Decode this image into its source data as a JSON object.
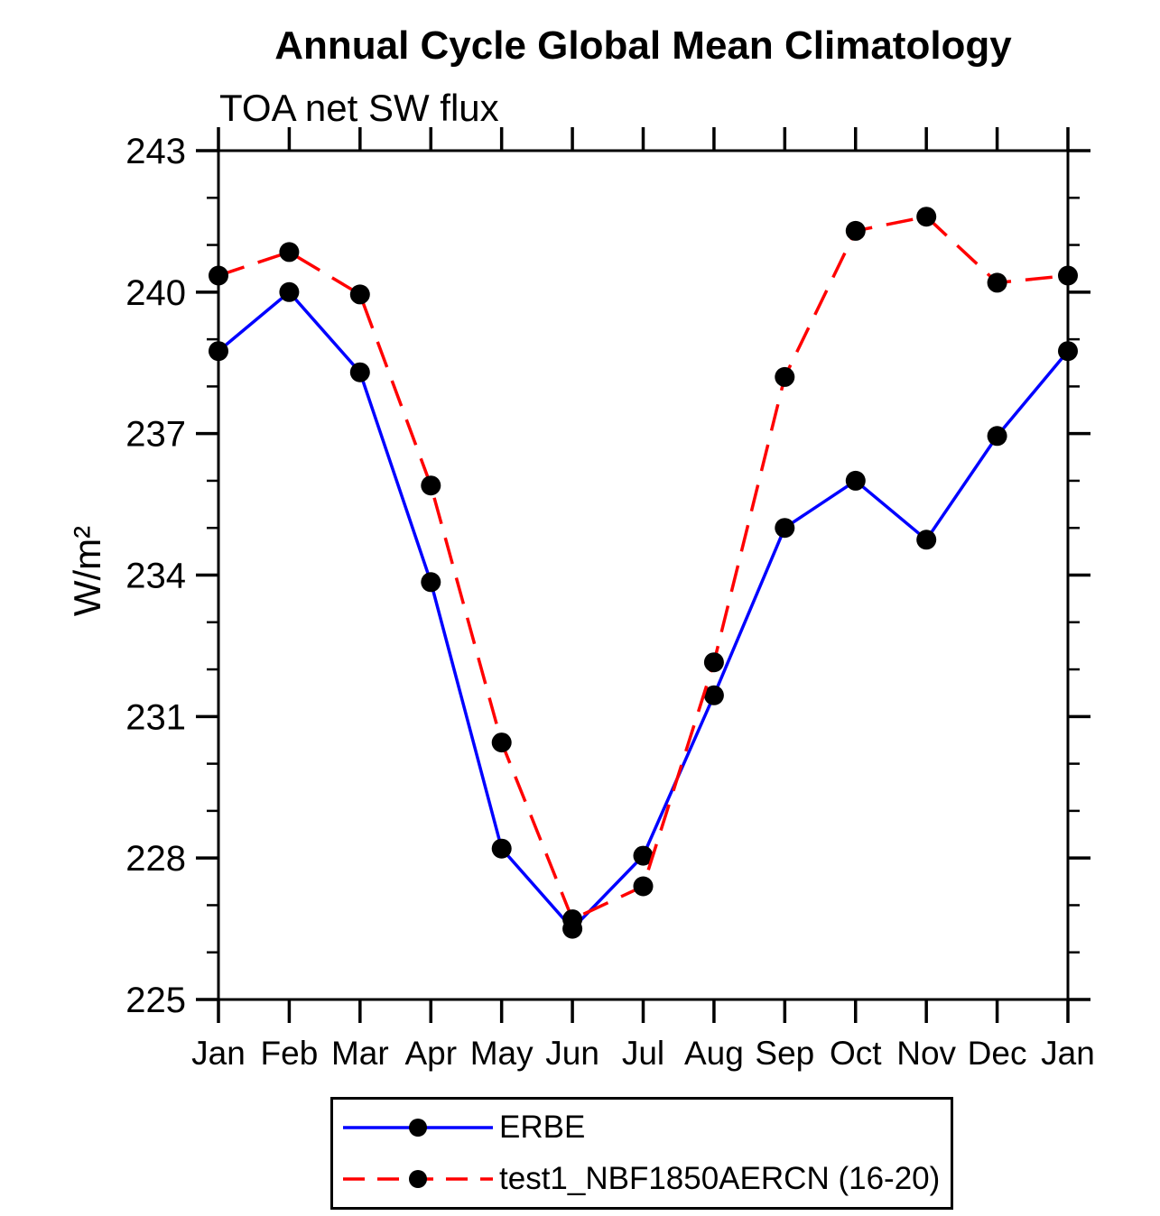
{
  "chart": {
    "title": "Annual Cycle Global Mean Climatology",
    "subtitle": "TOA net SW flux",
    "y_axis_label": "W/m²"
  },
  "chart_data": {
    "type": "line",
    "categories": [
      "Jan",
      "Feb",
      "Mar",
      "Apr",
      "May",
      "Jun",
      "Jul",
      "Aug",
      "Sep",
      "Oct",
      "Nov",
      "Dec",
      "Jan"
    ],
    "xlabel": "",
    "ylabel": "W/m²",
    "ylim": [
      225,
      243
    ],
    "yticks_major": [
      225,
      228,
      231,
      234,
      237,
      240,
      243
    ],
    "ytick_minor_step": 1,
    "grid": false,
    "legend_position": "bottom-center",
    "axis_color": "#000000",
    "marker_color": "#000000",
    "series": [
      {
        "name": "ERBE",
        "line_color": "#0000ff",
        "line_style": "solid",
        "marker": "circle",
        "values": [
          238.75,
          240.0,
          238.3,
          233.85,
          228.2,
          226.5,
          228.05,
          231.45,
          235.0,
          236.0,
          234.75,
          236.95,
          238.75
        ]
      },
      {
        "name": "test1_NBF1850AERCN (16-20)",
        "line_color": "#ff0000",
        "line_style": "dashed",
        "marker": "circle",
        "values": [
          240.35,
          240.85,
          239.95,
          235.9,
          230.45,
          226.7,
          227.4,
          232.15,
          238.2,
          241.3,
          241.6,
          240.2,
          240.35
        ]
      }
    ]
  }
}
